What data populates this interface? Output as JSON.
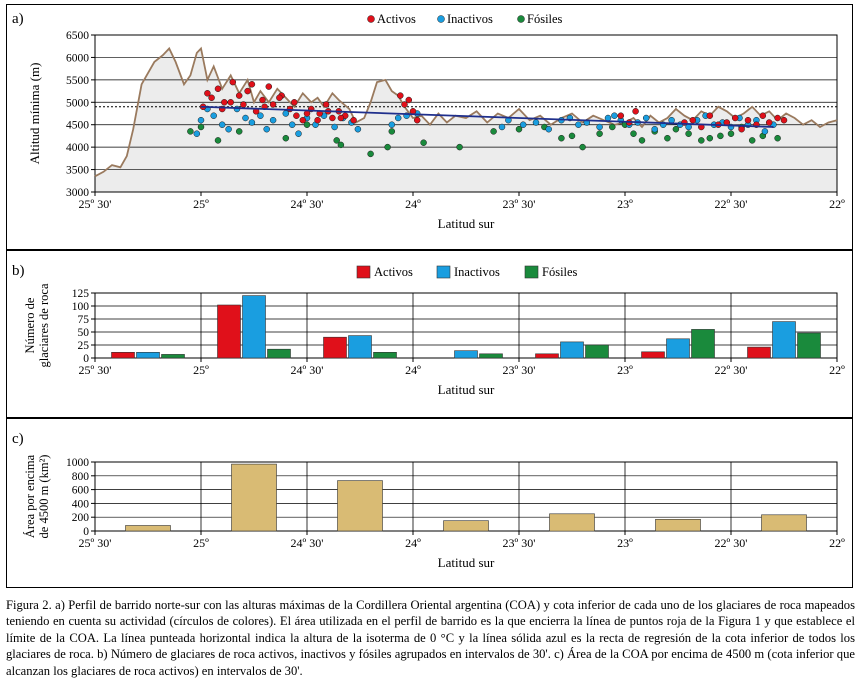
{
  "colors": {
    "activos": "#e0101a",
    "inactivos": "#1a9ee0",
    "fosiles": "#1a8a3c",
    "profile": "#9a7a5e",
    "regression": "#1f2f8c",
    "area": "#d9bb74",
    "bg": "#ececec"
  },
  "lat_ticks": [
    "25º 30'",
    "25º",
    "24º 30'",
    "24º",
    "23º 30'",
    "23º",
    "22º 30'",
    "22º"
  ],
  "xlabel": "Latitud sur",
  "legend": {
    "activos": "Activos",
    "inactivos": "Inactivos",
    "fosiles": "Fósiles"
  },
  "chart_data": [
    {
      "panel": "a)",
      "type": "line",
      "ylabel": "Altitud mínima (m)",
      "ylim": [
        3000,
        6500
      ],
      "yticks": [
        "3000",
        "3500",
        "4000",
        "4500",
        "5000",
        "5500",
        "6000",
        "6500"
      ],
      "xlim": [
        25.5,
        22.0
      ],
      "isotherm_0C": 4900,
      "regression": {
        "x": [
          25.0,
          22.3
        ],
        "y": [
          4900,
          4450
        ]
      },
      "profile": {
        "x": [
          25.5,
          25.46,
          25.42,
          25.38,
          25.35,
          25.32,
          25.3,
          25.28,
          25.25,
          25.22,
          25.18,
          25.15,
          25.12,
          25.08,
          25.05,
          25.02,
          25.0,
          24.97,
          24.94,
          24.9,
          24.86,
          24.82,
          24.78,
          24.75,
          24.72,
          24.68,
          24.64,
          24.6,
          24.56,
          24.52,
          24.48,
          24.45,
          24.42,
          24.38,
          24.35,
          24.3,
          24.27,
          24.23,
          24.2,
          24.17,
          24.13,
          24.1,
          24.07,
          24.04,
          24.0,
          23.96,
          23.92,
          23.88,
          23.84,
          23.8,
          23.75,
          23.7,
          23.65,
          23.6,
          23.55,
          23.5,
          23.45,
          23.4,
          23.35,
          23.3,
          23.25,
          23.2,
          23.15,
          23.1,
          23.05,
          23.0,
          22.96,
          22.92,
          22.88,
          22.84,
          22.8,
          22.76,
          22.72,
          22.68,
          22.64,
          22.6,
          22.56,
          22.52,
          22.48,
          22.44,
          22.4,
          22.36,
          22.32,
          22.28,
          22.24,
          22.2,
          22.16,
          22.12,
          22.08,
          22.04,
          22.0
        ],
        "y": [
          3350,
          3450,
          3600,
          3550,
          3800,
          4400,
          4900,
          5400,
          5650,
          5900,
          6050,
          6200,
          5900,
          5400,
          5600,
          6100,
          6200,
          5500,
          5800,
          5300,
          5600,
          5200,
          5500,
          5000,
          5250,
          5000,
          5300,
          5100,
          4900,
          5200,
          5000,
          5100,
          4900,
          5200,
          5050,
          4850,
          4550,
          4650,
          5000,
          5450,
          5500,
          5250,
          5150,
          4900,
          4650,
          4700,
          4500,
          4750,
          4550,
          4700,
          4650,
          4800,
          4550,
          4750,
          4650,
          4850,
          4600,
          4700,
          4500,
          4650,
          4750,
          4550,
          4700,
          4600,
          4500,
          4550,
          4650,
          4450,
          4700,
          4550,
          4650,
          4850,
          4700,
          4600,
          4800,
          4700,
          4900,
          4800,
          4650,
          4750,
          4900,
          4700,
          4800,
          4600,
          4750,
          4650,
          4500,
          4600,
          4450,
          4550,
          4600
        ]
      },
      "series": [
        {
          "name": "Activos",
          "lat": [
            24.99,
            24.95,
            24.92,
            24.89,
            24.85,
            24.82,
            24.78,
            24.74,
            24.71,
            24.68,
            24.66,
            24.62,
            24.58,
            24.55,
            24.52,
            24.48,
            24.44,
            24.41,
            24.38,
            24.35,
            24.32,
            24.28,
            24.06,
            24.04,
            24.02,
            24.0,
            23.98,
            23.02,
            22.98,
            22.95,
            22.72,
            22.68,
            22.64,
            22.6,
            22.56,
            22.52,
            22.48,
            22.45,
            22.42,
            22.38,
            22.35,
            22.32,
            22.28,
            22.25,
            24.97,
            24.9,
            24.86,
            24.8,
            24.76,
            24.7,
            24.63,
            24.56,
            24.5,
            24.45,
            24.4,
            24.34
          ],
          "alt": [
            4900,
            5100,
            5300,
            5000,
            5450,
            5150,
            5250,
            4800,
            5050,
            5350,
            4950,
            5150,
            4850,
            4700,
            4600,
            4850,
            4750,
            4950,
            4650,
            4800,
            4700,
            4600,
            5150,
            4950,
            5050,
            4800,
            4600,
            4700,
            4550,
            4800,
            4550,
            4600,
            4450,
            4700,
            4500,
            4550,
            4650,
            4400,
            4600,
            4500,
            4700,
            4550,
            4650,
            4600,
            5200,
            4850,
            5000,
            4950,
            5400,
            4900,
            5100,
            5000,
            4750,
            4600,
            4800,
            4650
          ]
        },
        {
          "name": "Inactivos",
          "lat": [
            25.02,
            25.0,
            24.97,
            24.94,
            24.9,
            24.87,
            24.83,
            24.79,
            24.76,
            24.72,
            24.69,
            24.66,
            24.6,
            24.57,
            24.54,
            24.5,
            24.46,
            24.42,
            24.37,
            24.33,
            24.29,
            24.26,
            24.1,
            24.07,
            24.03,
            23.98,
            23.58,
            23.55,
            23.48,
            23.42,
            23.36,
            23.3,
            23.26,
            23.22,
            23.18,
            23.12,
            23.08,
            23.05,
            23.02,
            22.98,
            22.94,
            22.9,
            22.86,
            22.82,
            22.78,
            22.74,
            22.7,
            22.66,
            22.62,
            22.58,
            22.54,
            22.5,
            22.46,
            22.42,
            22.38,
            22.34,
            22.3
          ],
          "alt": [
            4300,
            4600,
            4850,
            4700,
            4500,
            4400,
            4850,
            4650,
            4550,
            4700,
            4400,
            4600,
            4750,
            4500,
            4300,
            4650,
            4500,
            4700,
            4450,
            4650,
            4550,
            4400,
            4500,
            4650,
            4700,
            4750,
            4450,
            4600,
            4500,
            4550,
            4400,
            4600,
            4650,
            4500,
            4550,
            4450,
            4650,
            4700,
            4600,
            4500,
            4550,
            4650,
            4400,
            4500,
            4600,
            4500,
            4450,
            4600,
            4700,
            4500,
            4550,
            4450,
            4650,
            4500,
            4600,
            4350,
            4500
          ]
        },
        {
          "name": "Fósiles",
          "lat": [
            25.05,
            25.0,
            24.92,
            24.82,
            24.6,
            24.5,
            24.36,
            24.34,
            24.2,
            24.12,
            24.1,
            23.95,
            23.78,
            23.62,
            23.5,
            23.38,
            23.3,
            23.25,
            23.2,
            23.12,
            23.06,
            23.0,
            22.96,
            22.92,
            22.86,
            22.8,
            22.76,
            22.7,
            22.64,
            22.6,
            22.55,
            22.5,
            22.45,
            22.4,
            22.35,
            22.28
          ],
          "alt": [
            4350,
            4450,
            4150,
            4350,
            4200,
            4500,
            4150,
            4050,
            3850,
            4000,
            4350,
            4100,
            4000,
            4350,
            4400,
            4450,
            4200,
            4250,
            4000,
            4300,
            4450,
            4500,
            4300,
            4150,
            4350,
            4200,
            4400,
            4300,
            4150,
            4200,
            4250,
            4300,
            4450,
            4150,
            4250,
            4200
          ]
        }
      ]
    },
    {
      "panel": "b)",
      "type": "bar",
      "ylabel": "Número de glaciares de roca",
      "ylim": [
        0,
        125
      ],
      "yticks": [
        "0",
        "25",
        "50",
        "75",
        "100",
        "125"
      ],
      "categories": [
        "25º30'–25º",
        "25º–24º30'",
        "24º30'–24º",
        "24º–23º30'",
        "23º30'–23º",
        "23º–22º30'",
        "22º30'–22º"
      ],
      "series": [
        {
          "name": "Activos",
          "values": [
            11,
            102,
            40,
            0,
            8,
            12,
            21
          ]
        },
        {
          "name": "Inactivos",
          "values": [
            11,
            120,
            43,
            14,
            31,
            37,
            70
          ]
        },
        {
          "name": "Fósiles",
          "values": [
            7,
            17,
            11,
            8,
            25,
            55,
            48
          ]
        }
      ]
    },
    {
      "panel": "c)",
      "type": "bar",
      "ylabel": "Área por encima de 4500 m (km²)",
      "ylim": [
        0,
        1000
      ],
      "yticks": [
        "0",
        "200",
        "400",
        "600",
        "800",
        "1000"
      ],
      "categories": [
        "25º30'–25º",
        "25º–24º30'",
        "24º30'–24º",
        "24º–23º30'",
        "23º30'–23º",
        "23º–22º30'",
        "22º30'–22º"
      ],
      "values": [
        80,
        970,
        730,
        150,
        250,
        170,
        235
      ]
    }
  ],
  "caption": "Figura 2. a) Perfil de barrido norte-sur con las alturas máximas de la Cordillera Oriental argentina (COA) y cota inferior de cada uno de los glaciares de roca mapeados teniendo en cuenta su actividad (círculos de colores). El área utilizada en el perfil de barrido es la que encierra la línea de puntos roja de la Figura 1 y que establece el límite de la COA. La línea punteada horizontal indica la altura de la isoterma de 0 °C y la línea sólida azul es la recta de regresión de la cota inferior de todos los glaciares de roca. b) Número de glaciares de roca activos, inactivos y fósiles agrupados en intervalos de 30'. c) Área de la COA por encima de 4500 m (cota inferior que alcanzan los glaciares de roca activos) en intervalos de 30'."
}
